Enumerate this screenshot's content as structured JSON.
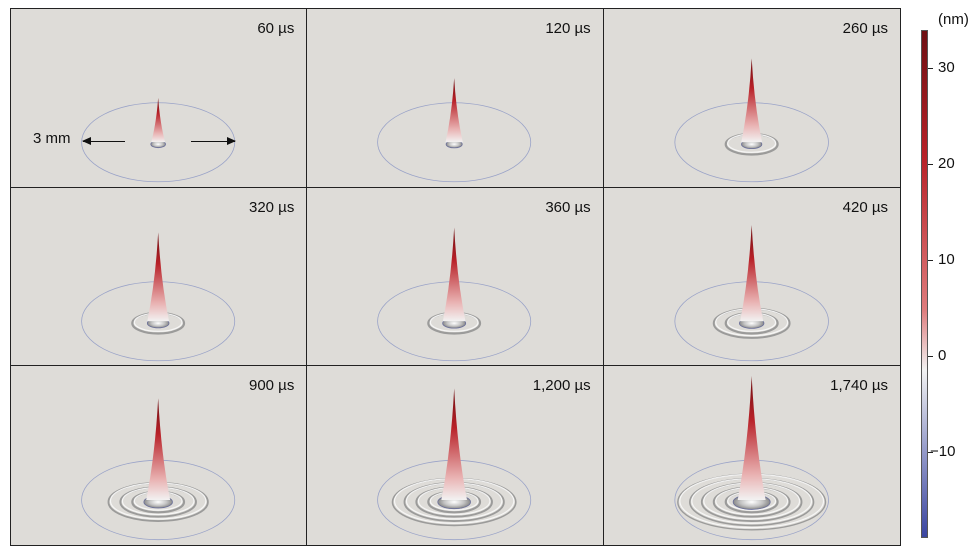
{
  "panels": [
    {
      "time": "60 µs",
      "peak": 0.36,
      "rings": 0,
      "dip": 0.1
    },
    {
      "time": "120 µs",
      "peak": 0.52,
      "rings": 0,
      "dip": 0.15
    },
    {
      "time": "260 µs",
      "peak": 0.68,
      "rings": 1,
      "dip": 0.3
    },
    {
      "time": "320 µs",
      "peak": 0.72,
      "rings": 1,
      "dip": 0.35
    },
    {
      "time": "360 µs",
      "peak": 0.76,
      "rings": 1,
      "dip": 0.4
    },
    {
      "time": "420 µs",
      "peak": 0.78,
      "rings": 2,
      "dip": 0.45
    },
    {
      "time": "900 µs",
      "peak": 0.82,
      "rings": 3,
      "dip": 0.6
    },
    {
      "time": "1,200 µs",
      "peak": 0.9,
      "rings": 4,
      "dip": 0.75
    },
    {
      "time": "1,740 µs",
      "peak": 1.0,
      "rings": 5,
      "dip": 0.9
    }
  ],
  "scale": {
    "label": "3 mm"
  },
  "colorbar": {
    "unit": "(nm)",
    "ticks": [
      "30",
      "20",
      "10",
      "0",
      "−10"
    ],
    "tick_values": [
      30,
      20,
      10,
      0,
      -10
    ],
    "range": [
      -19,
      34
    ],
    "colors": {
      "max": "#6e0f12",
      "high": "#b82128",
      "zero": "#f2f2f2",
      "min": "#3a45a0"
    }
  }
}
